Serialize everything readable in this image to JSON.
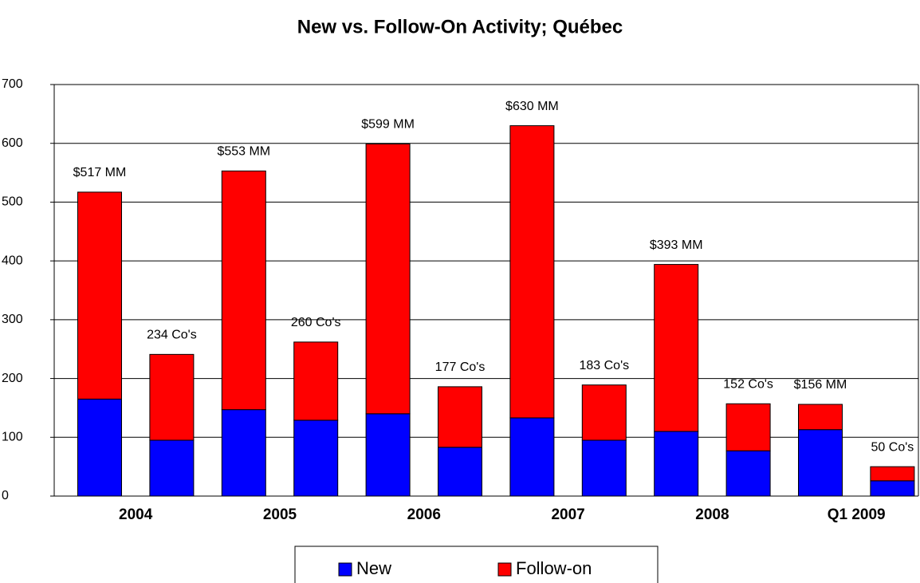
{
  "chart_data": {
    "type": "stacked_bar",
    "title": "New vs. Follow-On Activity; Québec",
    "categories": [
      "2004",
      null,
      "2005",
      null,
      "2006",
      null,
      "2007",
      null,
      "2008",
      null,
      "Q1 2009",
      null
    ],
    "series": [
      {
        "name": "New",
        "color": "#0000ff",
        "values": [
          165,
          95,
          147,
          129,
          140,
          83,
          133,
          95,
          110,
          77,
          113,
          26
        ]
      },
      {
        "name": "Follow-on",
        "color": "#ff0000",
        "values": [
          352,
          146,
          406,
          133,
          459,
          103,
          497,
          94,
          284,
          80,
          43,
          24
        ]
      }
    ],
    "bar_labels": [
      "$517 MM",
      "234 Co's",
      "$553 MM",
      "260 Co's",
      "$599 MM",
      "177 Co's",
      "$630 MM",
      "183 Co's",
      "$393 MM",
      "152 Co's",
      "$156 MM",
      "50 Co's"
    ],
    "ylim": [
      0,
      700
    ],
    "yticks": [
      0,
      100,
      200,
      300,
      400,
      500,
      600,
      700
    ],
    "grid": true,
    "legend": "bottom"
  }
}
